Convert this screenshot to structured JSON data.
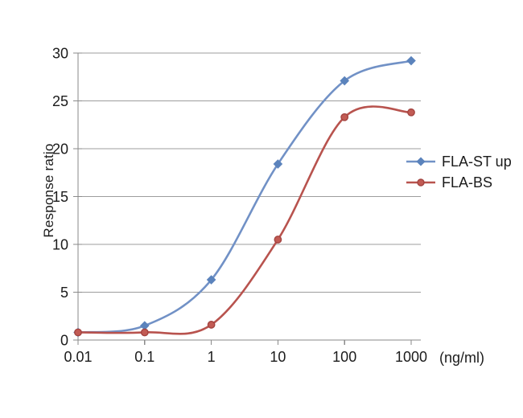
{
  "page": {
    "background": "#FFFFFF"
  },
  "chart_data": {
    "type": "line",
    "title": "",
    "x_scale": "log",
    "x": [
      0.01,
      0.1,
      1,
      10,
      100,
      1000
    ],
    "x_tick_labels": [
      "0.01",
      "0.1",
      "1",
      "10",
      "100",
      "1000"
    ],
    "x_unit_label": "(ng/ml)",
    "xlabel": "(ng/ml)",
    "ylabel": "Response ratio",
    "ylim": [
      0,
      30
    ],
    "y_ticks": [
      0,
      5,
      10,
      15,
      20,
      25,
      30
    ],
    "grid": "horizontal-only",
    "smooth_lines": true,
    "legend_position": "right",
    "series": [
      {
        "name": "FLA-ST up",
        "marker": "diamond",
        "line_color": "#7191C6",
        "marker_color": "#5B83BC",
        "marker_stroke": "#5B83BC",
        "values": [
          0.8,
          1.5,
          6.3,
          18.4,
          27.1,
          29.2
        ]
      },
      {
        "name": "FLA-BS",
        "marker": "circle",
        "line_color": "#B8534E",
        "marker_color": "#C25B54",
        "marker_stroke": "#A34440",
        "values": [
          0.8,
          0.8,
          1.6,
          10.5,
          23.3,
          23.8
        ]
      }
    ]
  },
  "style": {
    "grid_color": "#9D9D9D",
    "axis_color": "#8A8A8A",
    "text_color": "#1B1B1B"
  }
}
